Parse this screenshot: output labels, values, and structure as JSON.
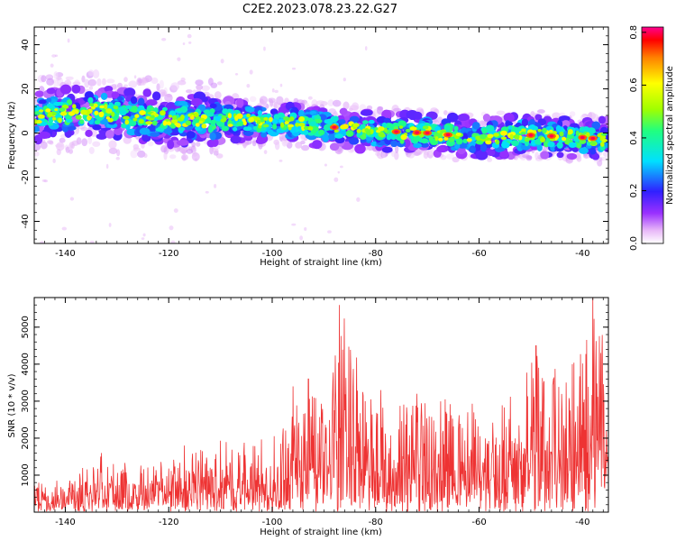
{
  "figure_title": "C2E2.2023.078.23.22.G27",
  "colors": {
    "snr_line": "#ee3333",
    "axis": "#000000",
    "background": "#ffffff",
    "spectrogram_background": "#ffffff"
  },
  "chart_data": [
    {
      "id": "spectrogram",
      "type": "heatmap",
      "title": "",
      "xlabel": "Height of straight line (km)",
      "ylabel": "Frequency (Hz)",
      "xlim": [
        -146,
        -35
      ],
      "ylim": [
        -50,
        48
      ],
      "xticks": [
        -140,
        -120,
        -100,
        -80,
        -60,
        -40
      ],
      "yticks": [
        -40,
        -20,
        0,
        20,
        40
      ],
      "ridge": {
        "description_points": [
          {
            "x": -145,
            "y": 8
          },
          {
            "x": -135,
            "y": 10
          },
          {
            "x": -128,
            "y": 8
          },
          {
            "x": -120,
            "y": 6
          },
          {
            "x": -110,
            "y": 6
          },
          {
            "x": -100,
            "y": 5
          },
          {
            "x": -90,
            "y": 3
          },
          {
            "x": -80,
            "y": 1
          },
          {
            "x": -70,
            "y": 0
          },
          {
            "x": -60,
            "y": -2
          },
          {
            "x": -50,
            "y": -1
          },
          {
            "x": -40,
            "y": -2
          },
          {
            "x": -35,
            "y": -3
          }
        ],
        "peak_amplitude": 0.8
      },
      "colorbar": {
        "label": "Normalized spectral amplitude",
        "range": [
          0.0,
          0.82
        ],
        "ticks": [
          0.0,
          0.2,
          0.4,
          0.6,
          0.8
        ],
        "colormap": "rainbow (magenta-blue-cyan-green-yellow-red)"
      },
      "grid": false
    },
    {
      "id": "snr",
      "type": "line",
      "title": "",
      "xlabel": "Height of straight line (km)",
      "ylabel": "SNR (10 * v/v)",
      "xlim": [
        -146,
        -35
      ],
      "ylim": [
        0,
        5800
      ],
      "xticks": [
        -140,
        -120,
        -100,
        -80,
        -60,
        -40
      ],
      "yticks": [
        1000,
        2000,
        3000,
        4000,
        5000
      ],
      "series": [
        {
          "envelope": [
            {
              "x": -146,
              "y": 800
            },
            {
              "x": -140,
              "y": 900
            },
            {
              "x": -133,
              "y": 1600
            },
            {
              "x": -125,
              "y": 1300
            },
            {
              "x": -118,
              "y": 1500
            },
            {
              "x": -110,
              "y": 2000
            },
            {
              "x": -100,
              "y": 2000
            },
            {
              "x": -96,
              "y": 3400
            },
            {
              "x": -90,
              "y": 3000
            },
            {
              "x": -87,
              "y": 5600
            },
            {
              "x": -80,
              "y": 3000
            },
            {
              "x": -70,
              "y": 3200
            },
            {
              "x": -62,
              "y": 3000
            },
            {
              "x": -55,
              "y": 3000
            },
            {
              "x": -49,
              "y": 4500
            },
            {
              "x": -43,
              "y": 3500
            },
            {
              "x": -38,
              "y": 5900
            },
            {
              "x": -35,
              "y": 4200
            }
          ],
          "spikes": [
            {
              "x": -133,
              "y": 1600
            },
            {
              "x": -117,
              "y": 1800
            },
            {
              "x": -96,
              "y": 3400
            },
            {
              "x": -93,
              "y": 3600
            },
            {
              "x": -87,
              "y": 5600
            },
            {
              "x": -82,
              "y": 3000
            },
            {
              "x": -79,
              "y": 3300
            },
            {
              "x": -72,
              "y": 3200
            },
            {
              "x": -49,
              "y": 4500
            },
            {
              "x": -42,
              "y": 4000
            },
            {
              "x": -38,
              "y": 5900
            },
            {
              "x": -36.5,
              "y": 4300
            }
          ]
        }
      ],
      "grid": false
    }
  ]
}
